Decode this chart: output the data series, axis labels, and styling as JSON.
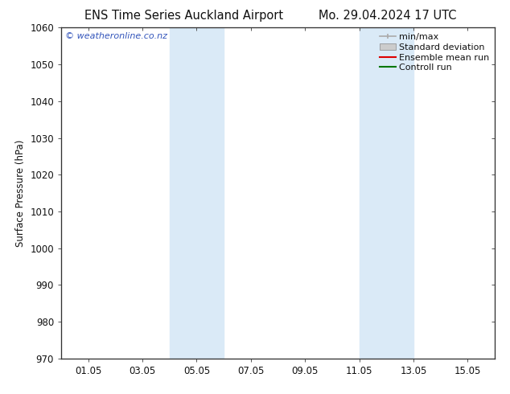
{
  "title_left": "ENS Time Series Auckland Airport",
  "title_right": "Mo. 29.04.2024 17 UTC",
  "ylabel": "Surface Pressure (hPa)",
  "ylim": [
    970,
    1060
  ],
  "yticks": [
    970,
    980,
    990,
    1000,
    1010,
    1020,
    1030,
    1040,
    1050,
    1060
  ],
  "xlim_start": 0.0,
  "xlim_end": 16.0,
  "xtick_positions": [
    1,
    3,
    5,
    7,
    9,
    11,
    13,
    15
  ],
  "xtick_labels": [
    "01.05",
    "03.05",
    "05.05",
    "07.05",
    "09.05",
    "11.05",
    "13.05",
    "15.05"
  ],
  "shaded_regions": [
    {
      "xmin": 4.0,
      "xmax": 6.0
    },
    {
      "xmin": 11.0,
      "xmax": 13.0
    }
  ],
  "shaded_color": "#daeaf7",
  "background_color": "#ffffff",
  "watermark_text": "© weatheronline.co.nz",
  "watermark_color": "#3355bb",
  "legend_entries": [
    {
      "label": "min/max",
      "color": "#aaaaaa",
      "type": "line_with_caps"
    },
    {
      "label": "Standard deviation",
      "color": "#cccccc",
      "type": "band"
    },
    {
      "label": "Ensemble mean run",
      "color": "#dd0000",
      "type": "line"
    },
    {
      "label": "Controll run",
      "color": "#007700",
      "type": "line"
    }
  ],
  "font_color": "#111111",
  "title_fontsize": 10.5,
  "tick_fontsize": 8.5,
  "legend_fontsize": 8,
  "ylabel_fontsize": 8.5,
  "watermark_fontsize": 8
}
